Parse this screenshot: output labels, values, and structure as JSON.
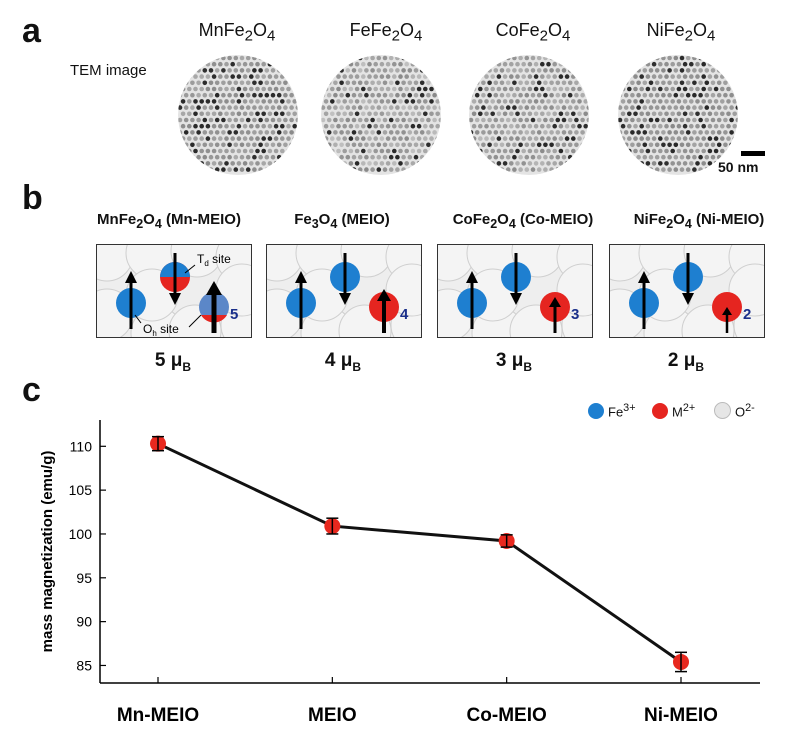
{
  "panel_a": {
    "letter": "a",
    "row_label": "TEM image",
    "titles": [
      {
        "base": "MnFe",
        "sub1": "2",
        "mid": "O",
        "sub2": "4"
      },
      {
        "base": "FeFe",
        "sub1": "2",
        "mid": "O",
        "sub2": "4"
      },
      {
        "base": "CoFe",
        "sub1": "2",
        "mid": "O",
        "sub2": "4"
      },
      {
        "base": "NiFe",
        "sub1": "2",
        "mid": "O",
        "sub2": "4"
      }
    ],
    "scale_bar_label": "50 nm"
  },
  "panel_b": {
    "letter": "b",
    "items": [
      {
        "formula": "MnFe",
        "s1": "2",
        "o": "O",
        "s2": "4",
        "name": " (Mn-MEIO)",
        "moment_value": "5 μ",
        "moment_sub": "B",
        "box_number": "5"
      },
      {
        "formula": "Fe",
        "s1": "3",
        "o": "O",
        "s2": "4",
        "name": " (MEIO)",
        "moment_value": "4 μ",
        "moment_sub": "B",
        "box_number": "4"
      },
      {
        "formula": "CoFe",
        "s1": "2",
        "o": "O",
        "s2": "4",
        "name": " (Co-MEIO)",
        "moment_value": "3 μ",
        "moment_sub": "B",
        "box_number": "3"
      },
      {
        "formula": "NiFe",
        "s1": "2",
        "o": "O",
        "s2": "4",
        "name": " (Ni-MEIO)",
        "moment_value": "2 μ",
        "moment_sub": "B",
        "box_number": "2"
      }
    ],
    "td_label": "T",
    "td_sub": "d",
    "td_suffix": " site",
    "oh_label": "O",
    "oh_sub": "h",
    "oh_suffix": " site"
  },
  "legend": {
    "items": [
      {
        "label": "Fe",
        "sup": "3+",
        "color": "#1e7fd0"
      },
      {
        "label": "M",
        "sup": "2+",
        "color": "#e52520"
      },
      {
        "label": "O",
        "sup": "2-",
        "color": "#dddddd"
      }
    ]
  },
  "panel_c": {
    "letter": "c"
  },
  "chart_data": {
    "type": "line",
    "categories": [
      "Mn-MEIO",
      "MEIO",
      "Co-MEIO",
      "Ni-MEIO"
    ],
    "series": [
      {
        "values": [
          110.3,
          100.9,
          99.2,
          85.4
        ],
        "error": [
          0.8,
          0.9,
          0.7,
          1.1
        ],
        "color": "#111111",
        "marker_color": "#e8281e"
      }
    ],
    "ylabel": "mass magnetization (emu/g)",
    "xlabel": "",
    "ylim": [
      83,
      113
    ],
    "yticks": [
      85,
      90,
      95,
      100,
      105,
      110
    ],
    "grid": false
  }
}
